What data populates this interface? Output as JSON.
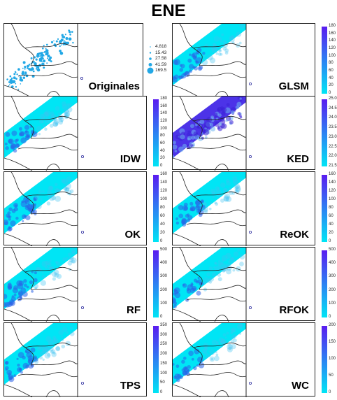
{
  "title": "ENE",
  "colors": {
    "low": "#00e5f5",
    "high": "#5a1cf0",
    "map_line": "#222222"
  },
  "chart_data": [
    {
      "type": "heatmap",
      "title": "Originales",
      "legend": {
        "type": "bubble",
        "values": [
          "4.818",
          "15.43",
          "27.58",
          "41.59",
          "169.5"
        ]
      }
    },
    {
      "type": "heatmap",
      "title": "GLSM",
      "colorbar": {
        "min": 0,
        "max": 180,
        "ticks": [
          "180",
          "160",
          "140",
          "120",
          "100",
          "80",
          "60",
          "40",
          "20",
          "0"
        ]
      }
    },
    {
      "type": "heatmap",
      "title": "IDW",
      "colorbar": {
        "min": 0,
        "max": 180,
        "ticks": [
          "180",
          "160",
          "140",
          "120",
          "100",
          "80",
          "60",
          "40",
          "20",
          "0"
        ]
      }
    },
    {
      "type": "heatmap",
      "title": "KED",
      "colorbar": {
        "min": 21.5,
        "max": 25.0,
        "ticks": [
          "25.0",
          "24.5",
          "24.0",
          "23.5",
          "23.0",
          "22.5",
          "22.0",
          "21.5"
        ]
      }
    },
    {
      "type": "heatmap",
      "title": "OK",
      "colorbar": {
        "min": 0,
        "max": 160,
        "ticks": [
          "160",
          "140",
          "120",
          "100",
          "80",
          "60",
          "40",
          "20",
          "0"
        ]
      }
    },
    {
      "type": "heatmap",
      "title": "ReOK",
      "colorbar": {
        "min": 0,
        "max": 160,
        "ticks": [
          "160",
          "140",
          "120",
          "100",
          "80",
          "60",
          "40",
          "20",
          "0"
        ]
      }
    },
    {
      "type": "heatmap",
      "title": "RF",
      "colorbar": {
        "min": 0,
        "max": 500,
        "ticks": [
          "500",
          "400",
          "300",
          "200",
          "100",
          "0"
        ]
      }
    },
    {
      "type": "heatmap",
      "title": "RFOK",
      "colorbar": {
        "min": 0,
        "max": 500,
        "ticks": [
          "500",
          "400",
          "300",
          "200",
          "100",
          "0"
        ]
      }
    },
    {
      "type": "heatmap",
      "title": "TPS",
      "colorbar": {
        "min": 0,
        "max": 350,
        "ticks": [
          "350",
          "300",
          "250",
          "200",
          "150",
          "100",
          "50",
          "0"
        ]
      }
    },
    {
      "type": "heatmap",
      "title": "WC",
      "colorbar": {
        "min": 0,
        "max": 200,
        "ticks": [
          "200",
          "150",
          "100",
          "50",
          "0"
        ]
      }
    }
  ]
}
